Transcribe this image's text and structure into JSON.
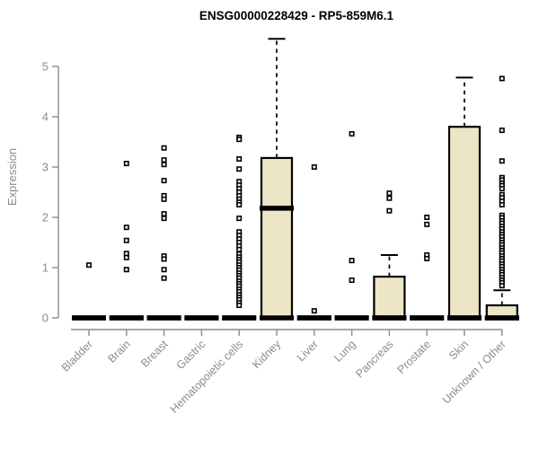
{
  "chart_data": {
    "type": "boxplot",
    "title": "ENSG00000228429 - RP5-859M6.1",
    "ylabel": "Expression",
    "xlabel": "",
    "ylim": [
      0,
      5
    ],
    "yticks": [
      0,
      1,
      2,
      3,
      4,
      5
    ],
    "grid": false,
    "legend": "none",
    "colors": {
      "box_fill": "#ece5c6",
      "box_border": "#000000",
      "median": "#000000",
      "outlier": "#000000",
      "axis": "#8c8c8c",
      "tick_label": "#8c8c8c",
      "title": "#000000"
    },
    "categories": [
      "Bladder",
      "Brain",
      "Breast",
      "Gastric",
      "Hematopoietic cells",
      "Kidney",
      "Liver",
      "Lung",
      "Pancreas",
      "Prostate",
      "Skin",
      "Unknown / Other"
    ],
    "series": [
      {
        "name": "Bladder",
        "q1": 0,
        "median": 0,
        "q3": 0,
        "whisker_low": 0,
        "whisker_high": 0,
        "outliers": [
          1.05
        ]
      },
      {
        "name": "Brain",
        "q1": 0,
        "median": 0,
        "q3": 0,
        "whisker_low": 0,
        "whisker_high": 0,
        "outliers": [
          3.07,
          1.8,
          1.54,
          1.28,
          1.2,
          0.96
        ]
      },
      {
        "name": "Breast",
        "q1": 0,
        "median": 0,
        "q3": 0,
        "whisker_low": 0,
        "whisker_high": 0,
        "outliers": [
          3.38,
          3.14,
          3.05,
          2.73,
          2.43,
          2.36,
          2.07,
          1.98,
          1.23,
          1.17,
          0.96,
          0.79
        ]
      },
      {
        "name": "Gastric",
        "q1": 0,
        "median": 0,
        "q3": 0,
        "whisker_low": 0,
        "whisker_high": 0,
        "outliers": []
      },
      {
        "name": "Hematopoietic cells",
        "q1": 0,
        "median": 0,
        "q3": 0,
        "whisker_low": 0,
        "whisker_high": 0,
        "outliers": [
          3.59,
          3.55,
          3.16,
          2.96,
          2.71,
          2.64,
          2.57,
          2.5,
          2.43,
          2.36,
          2.3,
          2.25,
          1.98,
          1.71,
          1.64,
          1.57,
          1.5,
          1.43,
          1.36,
          1.27,
          1.21,
          1.16,
          1.11,
          1.05,
          1.0,
          0.95,
          0.89,
          0.84,
          0.79,
          0.73,
          0.68,
          0.63,
          0.57,
          0.52,
          0.46,
          0.41,
          0.36,
          0.3,
          0.25
        ]
      },
      {
        "name": "Kidney",
        "q1": 0,
        "median": 2.18,
        "q3": 3.18,
        "whisker_low": 0,
        "whisker_high": 5.55,
        "outliers": []
      },
      {
        "name": "Liver",
        "q1": 0,
        "median": 0,
        "q3": 0,
        "whisker_low": 0,
        "whisker_high": 0,
        "outliers": [
          3.0,
          0.14
        ]
      },
      {
        "name": "Lung",
        "q1": 0,
        "median": 0,
        "q3": 0,
        "whisker_low": 0,
        "whisker_high": 0,
        "outliers": [
          3.66,
          1.14,
          0.75
        ]
      },
      {
        "name": "Pancreas",
        "q1": 0,
        "median": 0,
        "q3": 0.82,
        "whisker_low": 0,
        "whisker_high": 1.25,
        "outliers": [
          2.48,
          2.38,
          2.13
        ]
      },
      {
        "name": "Prostate",
        "q1": 0,
        "median": 0,
        "q3": 0,
        "whisker_low": 0,
        "whisker_high": 0,
        "outliers": [
          2.0,
          1.86,
          1.25,
          1.18
        ]
      },
      {
        "name": "Skin",
        "q1": 0,
        "median": 0,
        "q3": 3.8,
        "whisker_low": 0,
        "whisker_high": 4.78,
        "outliers": []
      },
      {
        "name": "Unknown / Other",
        "q1": 0,
        "median": 0,
        "q3": 0.25,
        "whisker_low": 0,
        "whisker_high": 0.55,
        "outliers": [
          4.76,
          3.73,
          3.12,
          2.79,
          2.74,
          2.68,
          2.63,
          2.57,
          2.45,
          2.39,
          2.32,
          2.25,
          2.04,
          1.99,
          1.93,
          1.88,
          1.82,
          1.77,
          1.71,
          1.66,
          1.61,
          1.55,
          1.5,
          1.45,
          1.39,
          1.34,
          1.29,
          1.23,
          1.18,
          1.13,
          1.07,
          1.02,
          0.96,
          0.91,
          0.86,
          0.8,
          0.75,
          0.7,
          0.64
        ]
      }
    ]
  }
}
